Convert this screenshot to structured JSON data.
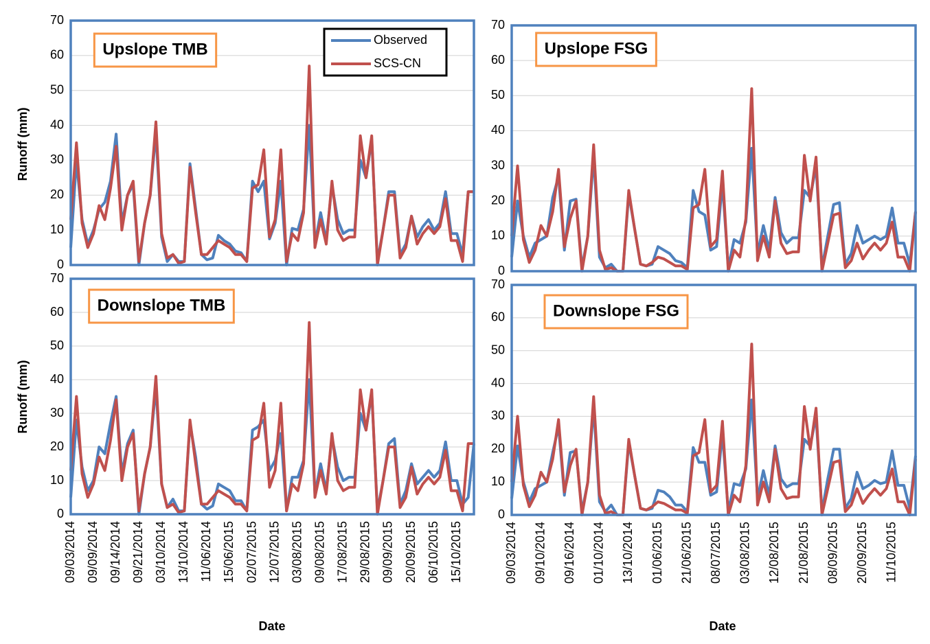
{
  "chart_data": [
    {
      "type": "line",
      "title": "Upslope TMB",
      "ylabel": "Runoff (mm)",
      "ylim": [
        0,
        70
      ],
      "yticks": [
        0,
        10,
        20,
        30,
        40,
        50,
        60,
        70
      ],
      "grid": true,
      "legend": "top-right",
      "series": [
        {
          "name": "Observed",
          "color": "#4f81bd",
          "values": [
            5,
            30,
            13,
            6,
            10,
            16,
            18,
            24,
            37.5,
            12,
            20,
            23,
            0,
            12,
            20,
            38,
            8,
            1,
            3,
            1,
            1,
            29,
            16,
            3,
            1.5,
            2,
            8.5,
            7,
            6,
            4,
            3.5,
            1,
            24,
            21,
            24,
            7.5,
            12,
            24,
            0,
            10.5,
            10,
            16,
            40,
            6,
            15,
            7,
            23,
            13,
            9,
            10,
            10,
            30,
            25,
            36,
            1,
            10,
            21,
            21,
            3,
            6,
            14,
            8,
            11,
            13,
            10,
            12,
            21,
            9,
            9,
            3,
            21,
            21
          ]
        },
        {
          "name": "SCS-CN",
          "color": "#c0504d",
          "values": [
            13,
            35,
            12,
            5,
            9,
            17,
            13,
            22,
            34,
            10,
            20,
            24,
            1,
            12,
            20,
            41,
            9,
            2,
            3,
            0.5,
            1,
            28,
            15,
            3,
            3,
            5,
            7,
            6,
            5,
            3,
            3,
            1,
            22,
            23,
            33,
            8,
            13,
            33,
            1,
            9,
            7,
            15,
            57,
            5,
            13,
            6,
            24,
            10,
            7,
            8,
            8,
            37,
            25,
            37,
            0,
            10,
            20,
            20,
            2,
            5,
            14,
            6,
            9,
            11,
            9,
            11,
            19,
            7,
            7,
            1,
            21,
            21
          ]
        }
      ]
    },
    {
      "type": "line",
      "title": "Upslope FSG",
      "ylim": [
        0,
        70
      ],
      "yticks": [
        0,
        10,
        20,
        30,
        40,
        50,
        60,
        70
      ],
      "grid": true,
      "series": [
        {
          "name": "Observed",
          "color": "#4f81bd",
          "values": [
            4,
            20,
            10,
            4,
            8,
            9,
            10,
            21,
            27,
            6,
            20,
            20.5,
            1,
            10,
            33,
            4,
            1,
            2,
            0,
            0,
            22,
            12,
            2,
            1.5,
            2,
            7,
            6,
            5,
            3,
            2.5,
            1,
            23,
            17,
            16,
            6,
            7,
            25,
            1,
            9,
            8,
            14,
            35,
            5,
            13,
            6,
            21,
            11,
            8,
            9.5,
            9.5,
            23,
            21,
            30,
            1,
            10,
            19,
            19.5,
            2,
            5,
            13,
            8,
            9,
            10,
            9,
            10,
            18,
            8,
            8,
            2,
            17
          ]
        },
        {
          "name": "SCS-CN",
          "color": "#c0504d",
          "values": [
            10,
            30,
            9,
            2.5,
            6,
            13,
            10,
            17,
            29,
            7,
            15,
            20,
            0,
            10,
            36,
            6,
            0.5,
            1,
            0,
            0,
            23,
            12,
            2,
            1.5,
            2.5,
            4,
            3.5,
            2.5,
            1.5,
            1.5,
            0.5,
            18,
            19,
            29,
            7,
            9,
            28.5,
            0,
            6,
            4,
            15,
            52,
            3,
            10,
            4,
            20,
            8,
            5,
            5.5,
            5.5,
            33,
            20,
            32.5,
            0,
            8,
            16,
            16.5,
            1,
            3,
            8,
            3.5,
            6,
            8,
            6,
            8,
            14,
            4,
            4,
            0,
            17
          ]
        }
      ]
    },
    {
      "type": "line",
      "title": "Downslope TMB",
      "ylabel": "Runoff (mm)",
      "xlabel": "Date",
      "ylim": [
        0,
        70
      ],
      "yticks": [
        0,
        10,
        20,
        30,
        40,
        50,
        60,
        70
      ],
      "grid": true,
      "categories": [
        "09/03/2014",
        null,
        null,
        null,
        "09/09/2014",
        null,
        null,
        null,
        "09/14/2014",
        null,
        null,
        null,
        "09/21/2014",
        null,
        null,
        null,
        "03/10/2014",
        null,
        null,
        null,
        "13/10/2014",
        null,
        null,
        null,
        "11/06/2014",
        null,
        null,
        null,
        "15/06/2015",
        null,
        null,
        null,
        "02/07/2015",
        null,
        null,
        null,
        "12/07/2015",
        null,
        null,
        null,
        "03/08/2015",
        null,
        null,
        null,
        "09/08/2015",
        null,
        null,
        null,
        "17/08/2015",
        null,
        null,
        null,
        "29/08/2015",
        null,
        null,
        null,
        "09/09/2015",
        null,
        null,
        null,
        "20/09/2015",
        null,
        null,
        null,
        "06/10/2015",
        null,
        null,
        null,
        "15/10/2015",
        null,
        null,
        null
      ],
      "series": [
        {
          "name": "Observed",
          "color": "#4f81bd",
          "values": [
            5,
            28,
            14,
            7,
            10,
            20,
            18,
            27,
            35,
            12,
            21,
            25,
            0,
            12,
            20,
            38,
            9,
            2,
            4.5,
            1,
            1,
            27,
            17,
            3,
            1.5,
            2.5,
            9,
            8,
            7,
            4,
            4,
            1,
            25,
            26,
            28,
            13,
            16,
            24,
            1,
            11,
            11,
            16,
            40,
            6,
            15,
            7,
            23,
            14,
            10,
            11,
            11,
            30,
            25,
            36,
            1,
            10,
            21,
            22.5,
            3,
            7,
            15,
            9,
            11,
            13,
            11,
            13,
            21.5,
            10,
            10,
            3,
            5,
            21
          ]
        },
        {
          "name": "SCS-CN",
          "color": "#c0504d",
          "values": [
            13,
            35,
            12,
            5,
            9,
            17,
            13,
            22,
            34,
            10,
            20,
            24,
            1,
            12,
            20,
            41,
            9,
            2,
            3,
            0.5,
            1,
            28,
            15,
            3,
            3,
            5,
            7,
            6,
            5,
            3,
            3,
            1,
            22,
            23,
            33,
            8,
            13,
            33,
            1,
            9,
            7,
            15,
            57,
            5,
            13,
            6,
            24,
            10,
            7,
            8,
            8,
            37,
            25,
            37,
            0,
            10,
            20,
            20,
            2,
            5,
            14,
            6,
            9,
            11,
            9,
            11,
            19,
            7,
            7,
            1,
            21,
            21
          ]
        }
      ]
    },
    {
      "type": "line",
      "title": "Downslope FSG",
      "xlabel": "Date",
      "ylim": [
        0,
        70
      ],
      "yticks": [
        0,
        10,
        20,
        30,
        40,
        50,
        60,
        70
      ],
      "grid": true,
      "categories": [
        "09/03/2014",
        null,
        null,
        null,
        null,
        "09/10/2014",
        null,
        null,
        null,
        null,
        "09/16/2014",
        null,
        null,
        null,
        null,
        "01/10/2014",
        null,
        null,
        null,
        null,
        "13/10/2014",
        null,
        null,
        null,
        null,
        "01/06/2015",
        null,
        null,
        null,
        null,
        "21/06/2015",
        null,
        null,
        null,
        null,
        "08/07/2015",
        null,
        null,
        null,
        null,
        "03/08/2015",
        null,
        null,
        null,
        null,
        "12/08/2015",
        null,
        null,
        null,
        null,
        "21/08/2015",
        null,
        null,
        null,
        null,
        "08/09/2015",
        null,
        null,
        null,
        null,
        "20/09/2015",
        null,
        null,
        null,
        null,
        "11/10/2015",
        null,
        null,
        null,
        null
      ],
      "series": [
        {
          "name": "Observed",
          "color": "#4f81bd",
          "values": [
            5,
            21,
            10,
            4,
            8,
            9,
            10,
            19,
            27,
            6,
            19,
            19.5,
            1,
            10,
            33,
            4,
            1,
            3,
            0,
            0,
            22,
            12,
            2,
            1.5,
            2,
            7.5,
            7,
            5.5,
            3,
            3,
            1,
            20.5,
            16,
            16,
            6,
            7,
            25,
            1,
            9.5,
            9,
            14,
            35,
            5,
            13.5,
            6,
            21,
            11,
            8.5,
            9.5,
            9.5,
            23,
            21,
            30,
            1,
            11,
            20,
            20,
            2,
            5,
            13,
            8,
            9,
            10.5,
            9.5,
            10,
            19.5,
            9,
            9,
            2,
            18
          ]
        },
        {
          "name": "SCS-CN",
          "color": "#c0504d",
          "values": [
            10,
            30,
            9,
            2.5,
            6,
            13,
            10,
            17,
            29,
            7,
            15,
            20,
            0,
            10,
            36,
            6,
            0.5,
            1,
            0,
            0,
            23,
            12,
            2,
            1.5,
            2.5,
            4,
            3.5,
            2.5,
            1.5,
            1.5,
            0.5,
            18,
            19,
            29,
            7,
            9,
            28.5,
            0,
            6,
            4,
            15,
            52,
            3,
            10,
            4,
            20,
            8,
            5,
            5.5,
            5.5,
            33,
            20,
            32.5,
            0,
            8,
            16,
            16.5,
            1,
            3,
            8,
            3.5,
            6,
            8,
            6,
            8,
            14,
            4,
            4,
            0,
            17
          ]
        }
      ]
    }
  ]
}
